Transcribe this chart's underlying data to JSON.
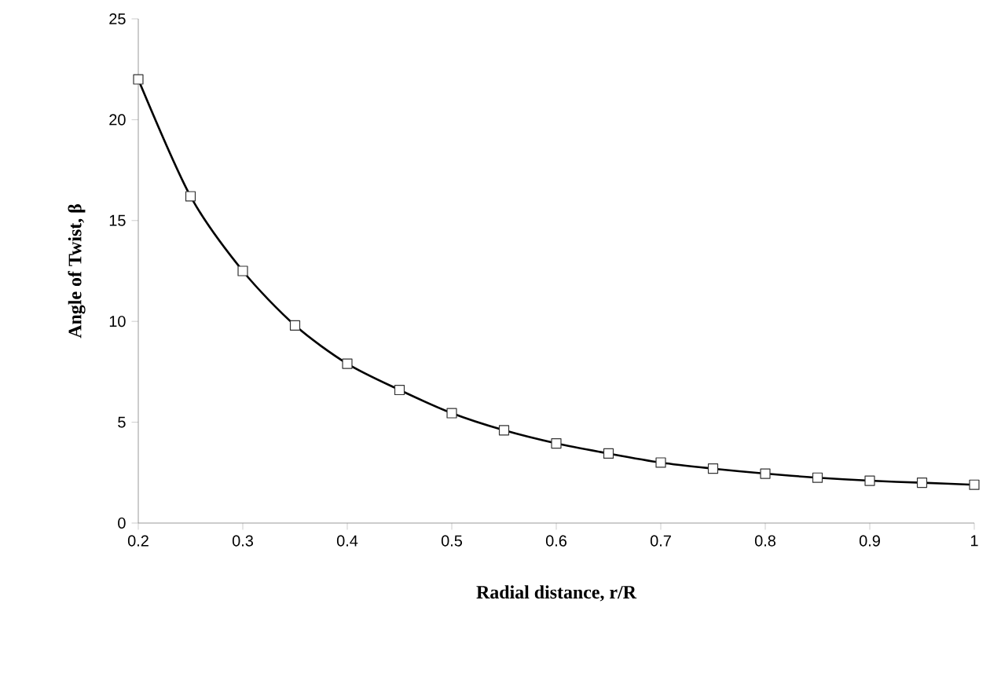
{
  "chart_data": {
    "type": "line",
    "xlabel": "Radial distance, r/R",
    "ylabel": "Angle of Twist, β",
    "x": [
      0.2,
      0.25,
      0.3,
      0.35,
      0.4,
      0.45,
      0.5,
      0.55,
      0.6,
      0.65,
      0.7,
      0.75,
      0.8,
      0.85,
      0.9,
      0.95,
      1.0
    ],
    "values": [
      22,
      16.2,
      12.5,
      9.8,
      7.9,
      6.6,
      5.45,
      4.6,
      3.95,
      3.45,
      3.0,
      2.7,
      2.45,
      2.25,
      2.1,
      2.0,
      1.9
    ],
    "color": "#000000",
    "marker": "square",
    "line_style": "solid",
    "xlim": [
      0.2,
      1.0
    ],
    "ylim": [
      0,
      25
    ],
    "xticks": [
      0.2,
      0.3,
      0.4,
      0.5,
      0.6,
      0.7,
      0.8,
      0.9,
      1
    ],
    "yticks": [
      0,
      5,
      10,
      15,
      20,
      25
    ],
    "grid": false
  }
}
